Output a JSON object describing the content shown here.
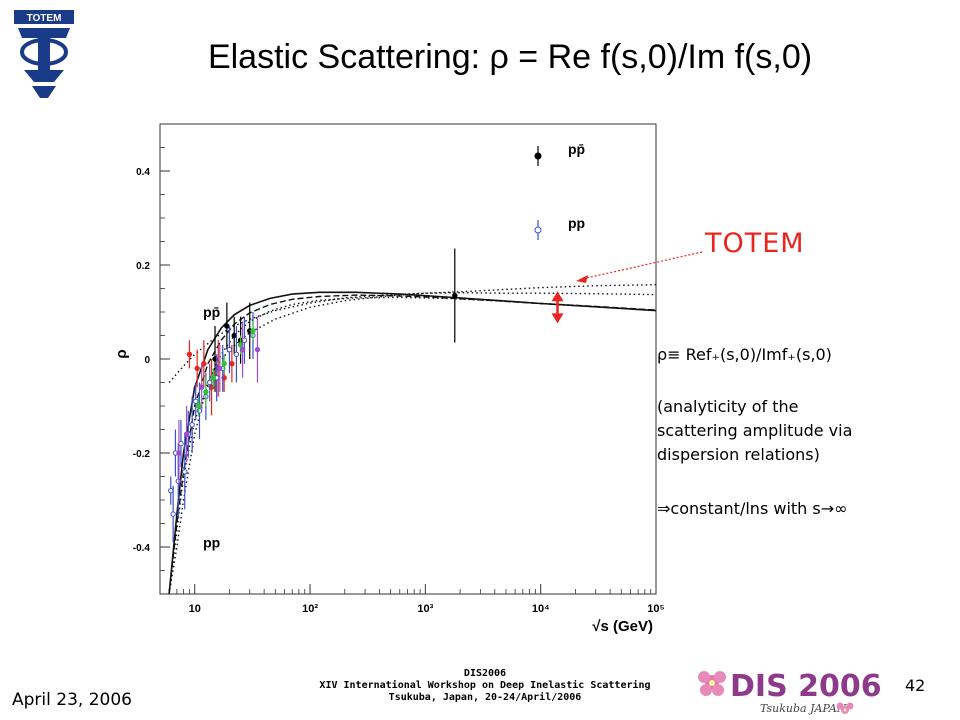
{
  "slide": {
    "title": "Elastic Scattering:  ρ = Re f(s,0)/Im  f(s,0)",
    "totem_label": "TOTEM",
    "logo_text": "TOTEM",
    "notes": [
      "ρ≡ Ref₊(s,0)/Imf₊(s,0)",
      "(analyticity of the",
      "scattering amplitude via",
      "dispersion relations)",
      "⇒constant/lns   with s→∞"
    ],
    "footer": {
      "date": "April 23, 2006",
      "conf_line1": "DIS2006",
      "conf_line2": "XIV International Workshop on Deep Inelastic Scattering",
      "conf_line3": "Tsukuba, Japan, 20-24/April/2006",
      "page_number": "42",
      "dis_logo_text": "DIS 2006",
      "dis_logo_sub": "Tsukuba JAPAN"
    },
    "colors": {
      "totem_red": "#e8261e",
      "pp_blue": "#3b4fd0"
    }
  },
  "chart_data": {
    "type": "scatter",
    "xlabel": "√s (GeV)",
    "ylabel": "ρ",
    "x_scale": "log",
    "xlim": [
      5,
      100000
    ],
    "ylim": [
      -0.5,
      0.5
    ],
    "x_ticks": [
      10,
      100,
      1000,
      10000,
      100000
    ],
    "x_tick_labels": [
      "10",
      "10²",
      "10³",
      "10⁴",
      "10⁵"
    ],
    "y_ticks": [
      -0.4,
      -0.2,
      0,
      0.2,
      0.4
    ],
    "y_tick_labels": [
      "-0.4",
      "-0.2",
      "0",
      "0.2",
      "0.4"
    ],
    "legend": [
      {
        "name": "pp̄",
        "marker": "filled-circle",
        "color": "#000000"
      },
      {
        "name": "pp",
        "marker": "open-circle",
        "color": "#3b4fd0"
      }
    ],
    "legend_position": "top-right",
    "annotations": [
      {
        "text": "pp̄",
        "x": 6.5,
        "y": 0.1
      },
      {
        "text": "pp",
        "x": 6.5,
        "y": -0.39
      }
    ],
    "curves": [
      {
        "style": "solid",
        "x": [
          6,
          7,
          8,
          10,
          13,
          17,
          22,
          30,
          45,
          70,
          120,
          250,
          600,
          1500,
          4000,
          10000,
          30000,
          100000
        ],
        "y": [
          -0.5,
          -0.33,
          -0.2,
          -0.06,
          0.02,
          0.066,
          0.094,
          0.114,
          0.129,
          0.138,
          0.142,
          0.142,
          0.138,
          0.132,
          0.125,
          0.118,
          0.111,
          0.103
        ]
      },
      {
        "style": "dashed",
        "x": [
          6,
          7,
          8,
          10,
          13,
          17,
          22,
          30,
          45,
          70,
          120,
          250,
          600,
          1500,
          4000,
          10000,
          30000,
          100000
        ],
        "y": [
          -0.5,
          -0.35,
          -0.24,
          -0.1,
          -0.01,
          0.04,
          0.074,
          0.098,
          0.116,
          0.127,
          0.133,
          0.136,
          0.134,
          0.13,
          0.124,
          0.118,
          0.112,
          0.104
        ]
      },
      {
        "style": "dotted",
        "x": [
          6,
          8,
          10,
          15,
          20,
          30,
          50,
          100,
          200,
          500,
          1000,
          2000,
          5000,
          10000,
          30000,
          100000
        ],
        "y": [
          -0.05,
          -0.015,
          0.01,
          0.045,
          0.065,
          0.085,
          0.103,
          0.119,
          0.13,
          0.137,
          0.14,
          0.141,
          0.14,
          0.14,
          0.139,
          0.137
        ]
      },
      {
        "style": "dotted",
        "x": [
          6,
          7,
          8,
          10,
          13,
          17,
          22,
          30,
          45,
          70,
          120,
          250,
          600,
          1500,
          4000,
          10000,
          30000,
          100000
        ],
        "y": [
          -0.5,
          -0.4,
          -0.3,
          -0.16,
          -0.05,
          0.01,
          0.05,
          0.08,
          0.102,
          0.116,
          0.125,
          0.13,
          0.131,
          0.129,
          0.124,
          0.118,
          0.111,
          0.104
        ]
      },
      {
        "style": "dotted",
        "x": [
          6,
          8,
          10,
          15,
          20,
          30,
          50,
          100,
          200,
          500,
          1000,
          2000,
          5000,
          10000,
          30000,
          100000
        ],
        "y": [
          -0.5,
          -0.25,
          -0.13,
          -0.02,
          0.02,
          0.056,
          0.085,
          0.11,
          0.124,
          0.135,
          0.14,
          0.143,
          0.148,
          0.152,
          0.156,
          0.158
        ]
      }
    ],
    "series": [
      {
        "name": "pp̄",
        "marker": "filled",
        "color": "#000000",
        "points": [
          [
            15,
            0.0,
            0.07
          ],
          [
            19,
            0.07,
            0.05
          ],
          [
            22,
            0.05,
            0.04
          ],
          [
            25,
            0.04,
            0.05
          ],
          [
            30,
            0.06,
            0.06
          ],
          [
            1800,
            0.135,
            0.1
          ]
        ]
      },
      {
        "name": "pp̄ (red)",
        "marker": "filled",
        "color": "#e8261e",
        "points": [
          [
            9,
            0.01,
            0.03
          ],
          [
            10.5,
            -0.02,
            0.04
          ],
          [
            12,
            -0.01,
            0.05
          ],
          [
            14,
            -0.06,
            0.06
          ],
          [
            16,
            -0.02,
            0.06
          ],
          [
            18,
            -0.04,
            0.03
          ],
          [
            21,
            -0.01,
            0.04
          ]
        ]
      },
      {
        "name": "pp",
        "marker": "open",
        "color": "#3b4fd0",
        "points": [
          [
            6.2,
            -0.28,
            0.03
          ],
          [
            6.5,
            -0.33,
            0.06
          ],
          [
            6.8,
            -0.2,
            0.05
          ],
          [
            7.2,
            -0.26,
            0.08
          ],
          [
            7.6,
            -0.18,
            0.05
          ],
          [
            8.2,
            -0.24,
            0.08
          ],
          [
            8.8,
            -0.16,
            0.05
          ],
          [
            9.5,
            -0.14,
            0.06
          ],
          [
            10.2,
            -0.09,
            0.04
          ],
          [
            11,
            -0.11,
            0.06
          ],
          [
            12.5,
            -0.08,
            0.05
          ],
          [
            13.5,
            -0.05,
            0.04
          ],
          [
            15.5,
            -0.04,
            0.05
          ],
          [
            17.5,
            -0.02,
            0.05
          ],
          [
            20,
            0.02,
            0.05
          ],
          [
            23,
            0.01,
            0.06
          ],
          [
            27,
            0.04,
            0.05
          ],
          [
            32,
            0.05,
            0.05
          ]
        ]
      },
      {
        "name": "pp (green)",
        "marker": "filled",
        "color": "#2ec52e",
        "points": [
          [
            10.8,
            -0.1,
            0.02
          ],
          [
            12.5,
            -0.07,
            0.03
          ],
          [
            14.5,
            -0.04,
            0.02
          ],
          [
            18,
            -0.01,
            0.02
          ],
          [
            25,
            0.03,
            0.02
          ],
          [
            32,
            0.06,
            0.02
          ]
        ]
      },
      {
        "name": "pp (purple)",
        "marker": "filled",
        "color": "#9b4fd0",
        "points": [
          [
            7.3,
            -0.2,
            0.07
          ],
          [
            8.5,
            -0.16,
            0.06
          ],
          [
            11.5,
            -0.06,
            0.05
          ],
          [
            16.5,
            -0.02,
            0.05
          ],
          [
            26,
            0.02,
            0.06
          ],
          [
            35,
            0.02,
            0.07
          ]
        ]
      }
    ],
    "totem_band": {
      "x": 14000,
      "y_low": 0.08,
      "y_high": 0.14
    }
  }
}
